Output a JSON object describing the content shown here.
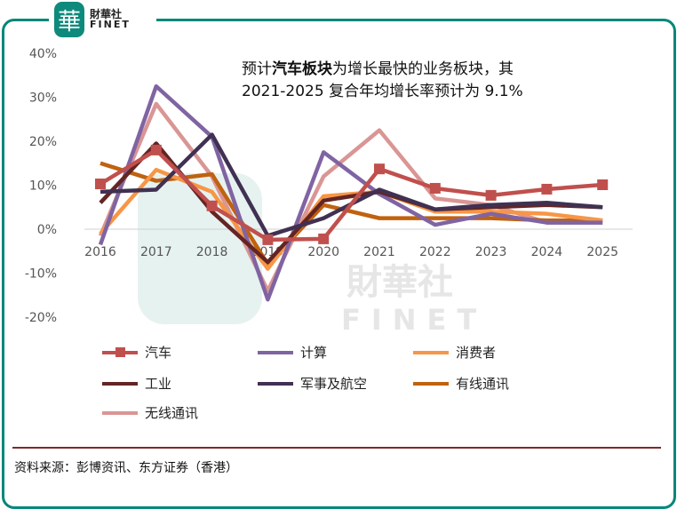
{
  "logo": {
    "cn": "財華社",
    "en": "FINET",
    "glyph": "華"
  },
  "title": {
    "prefix": "预计",
    "bold": "汽车板块",
    "suffix": "为增长最快的业务板块，其",
    "line2": "2021-2025 复合年均增长率预计为 9.1%"
  },
  "source": "资料来源：彭博资讯、东方证券（香港）",
  "watermark": {
    "cn": "財華社",
    "en": "FINET"
  },
  "chart_data": {
    "type": "line",
    "title": "预计汽车板块为增长最快的业务板块，其2021-2025 复合年均增长率预计为 9.1%",
    "x": [
      "2016",
      "2017",
      "2018",
      "2019",
      "2020",
      "2021",
      "2022",
      "2023",
      "2024",
      "2025"
    ],
    "ylim": [
      -20,
      40
    ],
    "yticks": [
      40,
      30,
      20,
      10,
      0,
      -10,
      -20
    ],
    "ytick_labels": [
      "40%",
      "30%",
      "20%",
      "10%",
      "0%",
      "-10%",
      "-20%"
    ],
    "grid": false,
    "legend_position": "bottom",
    "series": [
      {
        "name": "汽车",
        "color": "#c0504d",
        "marker": "square",
        "values": [
          10.3,
          18,
          5.3,
          -2.4,
          -2.2,
          13.7,
          9.3,
          7.7,
          9.1,
          10.1
        ]
      },
      {
        "name": "计算",
        "color": "#8064a2",
        "values": [
          -3.5,
          32.5,
          21,
          -16,
          17.5,
          8,
          1,
          3.5,
          1.5,
          1.5
        ]
      },
      {
        "name": "消费者",
        "color": "#f79646",
        "values": [
          -1,
          13.5,
          8.5,
          -9,
          7.5,
          8.5,
          4,
          4,
          3.5,
          2
        ]
      },
      {
        "name": "工业",
        "color": "#632523",
        "values": [
          6,
          19.5,
          4,
          -7.5,
          6.5,
          8.5,
          4.5,
          5,
          5.5,
          5
        ]
      },
      {
        "name": "军事及航空",
        "color": "#403152",
        "values": [
          8.5,
          9,
          21.5,
          -1.5,
          2.5,
          9,
          4.5,
          5.5,
          6,
          5
        ]
      },
      {
        "name": "有线通讯",
        "color": "#c0620f",
        "values": [
          15,
          11,
          12.5,
          -8,
          5.5,
          2.5,
          2.5,
          2.5,
          2,
          2
        ]
      },
      {
        "name": "无线通讯",
        "color": "#d99694",
        "values": [
          -1.5,
          28.5,
          12,
          -14,
          12,
          22.5,
          7,
          5.5,
          1.5,
          1.5
        ]
      }
    ]
  }
}
